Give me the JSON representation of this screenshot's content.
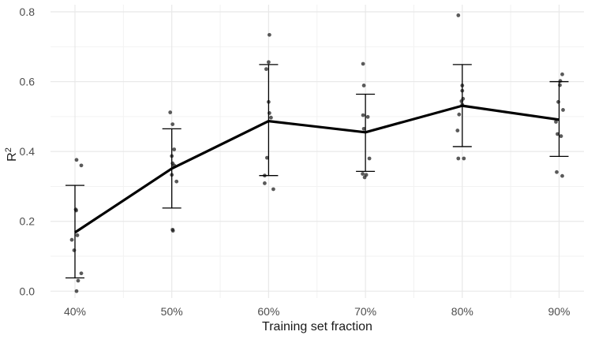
{
  "chart_data": {
    "type": "line",
    "subtype": "mean-line with sd error bars and jittered scatter points",
    "title": "",
    "xlabel": "Training set fraction",
    "ylabel": "R²",
    "ylabel_base": "R",
    "ylabel_sup": "2",
    "legend": "none",
    "grid": "major and minor, light gray on white",
    "categories": [
      "40%",
      "50%",
      "60%",
      "70%",
      "80%",
      "90%"
    ],
    "ytick_labels": [
      "0.0",
      "0.2",
      "0.4",
      "0.6",
      "0.8"
    ],
    "ytick_values": [
      0.0,
      0.2,
      0.4,
      0.6,
      0.8
    ],
    "yminor_values": [
      0.1,
      0.3,
      0.5,
      0.7
    ],
    "ylim": [
      0.0,
      0.8
    ],
    "means": [
      0.168,
      0.351,
      0.487,
      0.455,
      0.531,
      0.491
    ],
    "error_low": [
      0.038,
      0.238,
      0.331,
      0.343,
      0.414,
      0.386
    ],
    "error_high": [
      0.303,
      0.465,
      0.649,
      0.564,
      0.649,
      0.6
    ],
    "points_by_category": [
      [
        [
          2,
          0.376
        ],
        [
          8,
          0.36
        ],
        [
          1,
          0.234
        ],
        [
          1.5,
          0.231
        ],
        [
          3,
          0.16
        ],
        [
          -4,
          0.147
        ],
        [
          -1,
          0.117
        ],
        [
          8,
          0.051
        ],
        [
          4,
          0.03
        ],
        [
          2,
          0.0
        ]
      ],
      [
        [
          -2,
          0.512
        ],
        [
          1,
          0.478
        ],
        [
          3,
          0.406
        ],
        [
          0,
          0.387
        ],
        [
          1,
          0.366
        ],
        [
          3,
          0.36
        ],
        [
          0,
          0.333
        ],
        [
          6,
          0.314
        ],
        [
          1,
          0.176
        ],
        [
          1.5,
          0.173
        ]
      ],
      [
        [
          1,
          0.734
        ],
        [
          0,
          0.656
        ],
        [
          -3,
          0.636
        ],
        [
          0,
          0.542
        ],
        [
          1,
          0.51
        ],
        [
          3,
          0.497
        ],
        [
          -2,
          0.382
        ],
        [
          -5,
          0.331
        ],
        [
          -5,
          0.309
        ],
        [
          6,
          0.292
        ]
      ],
      [
        [
          -3,
          0.651
        ],
        [
          -2,
          0.589
        ],
        [
          -3,
          0.504
        ],
        [
          3,
          0.499
        ],
        [
          -2,
          0.465
        ],
        [
          5,
          0.38
        ],
        [
          -3.5,
          0.336
        ],
        [
          1,
          0.333
        ],
        [
          -1,
          0.326
        ]
      ],
      [
        [
          -5,
          0.79
        ],
        [
          0,
          0.589
        ],
        [
          0,
          0.574
        ],
        [
          1,
          0.551
        ],
        [
          -1,
          0.544
        ],
        [
          0,
          0.534
        ],
        [
          -4,
          0.506
        ],
        [
          -6,
          0.46
        ],
        [
          -5,
          0.38
        ],
        [
          2,
          0.38
        ]
      ],
      [
        [
          4,
          0.621
        ],
        [
          1.5,
          0.602
        ],
        [
          1,
          0.59
        ],
        [
          -1,
          0.542
        ],
        [
          5,
          0.519
        ],
        [
          -4,
          0.485
        ],
        [
          -2,
          0.45
        ],
        [
          2.5,
          0.444
        ],
        [
          -3,
          0.341
        ],
        [
          4,
          0.33
        ]
      ]
    ],
    "colors": {
      "background": "#ffffff",
      "mean_line": "#000000",
      "error_bar": "#000000",
      "point": "#1a1a1a",
      "grid_major": "#e8e8e8",
      "grid_minor": "#f2f2f2",
      "tick_label": "#4d4d4d",
      "axis_title": "#1a1a1a"
    }
  }
}
